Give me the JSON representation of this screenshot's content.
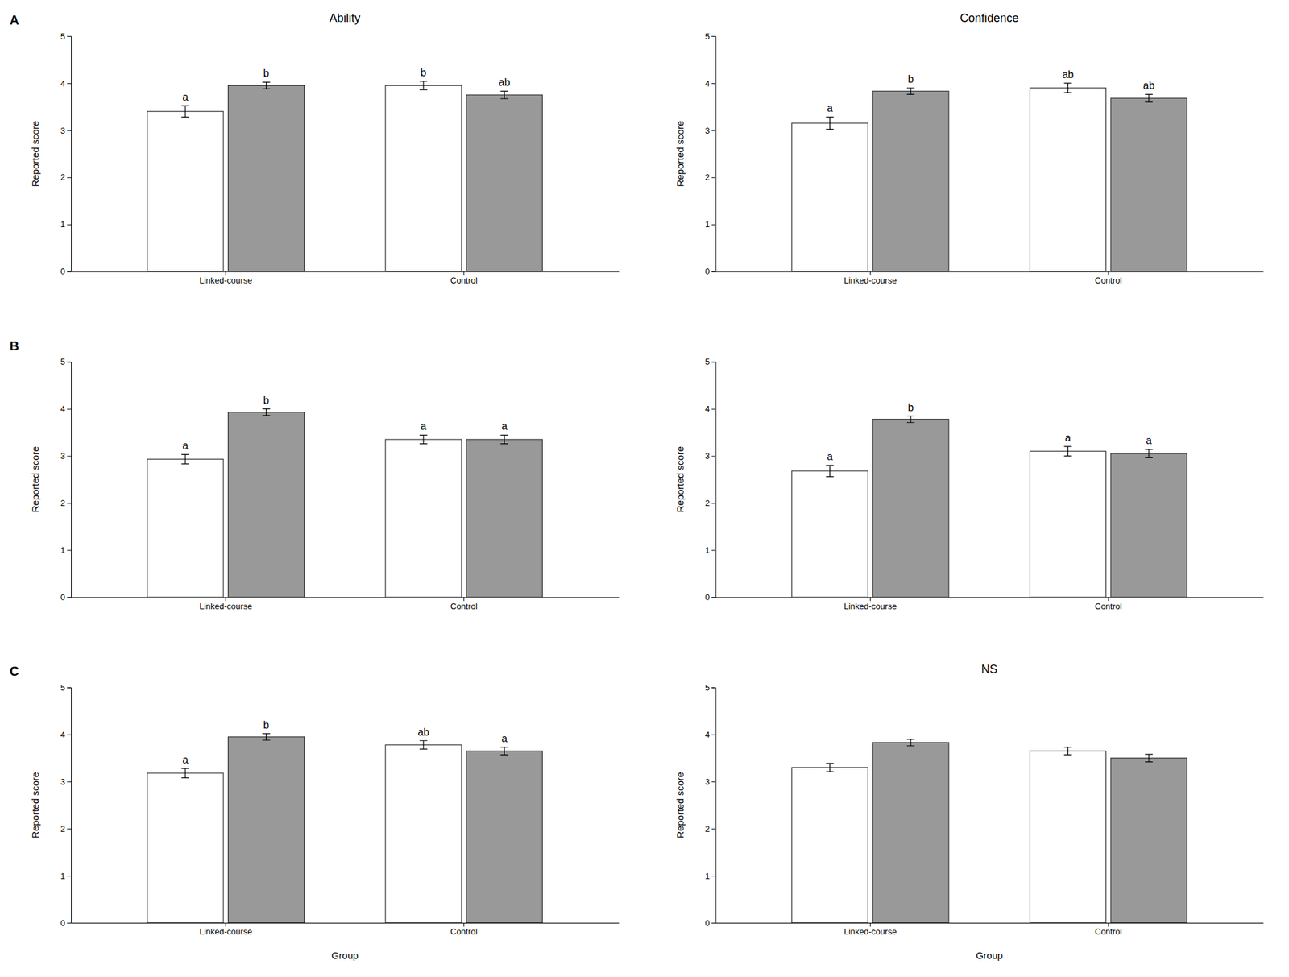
{
  "chart_data": [
    {
      "type": "bar",
      "title": "Ability",
      "annotations": [
        "A"
      ],
      "ylabel": "Reported score",
      "categories": [
        "Linked-course",
        "Control"
      ],
      "ylim": [
        0,
        5
      ],
      "yticks": [
        0,
        1,
        2,
        3,
        4,
        5
      ],
      "series": [
        {
          "color": "#ffffff",
          "values": [
            3.4,
            3.95
          ],
          "errors": [
            0.12,
            0.09
          ],
          "letter_labels": [
            "a",
            "b"
          ]
        },
        {
          "color": "#999999",
          "values": [
            3.95,
            3.75
          ],
          "errors": [
            0.07,
            0.08
          ],
          "letter_labels": [
            "b",
            "ab"
          ]
        }
      ]
    },
    {
      "type": "bar",
      "title": "Confidence",
      "ylabel": "Reported score",
      "categories": [
        "Linked-course",
        "Control"
      ],
      "ylim": [
        0,
        5
      ],
      "yticks": [
        0,
        1,
        2,
        3,
        4,
        5
      ],
      "series": [
        {
          "color": "#ffffff",
          "values": [
            3.15,
            3.9
          ],
          "errors": [
            0.13,
            0.1
          ],
          "letter_labels": [
            "a",
            "ab"
          ]
        },
        {
          "color": "#999999",
          "values": [
            3.83,
            3.68
          ],
          "errors": [
            0.07,
            0.08
          ],
          "letter_labels": [
            "b",
            "ab"
          ]
        }
      ]
    },
    {
      "type": "bar",
      "annotations": [
        "B"
      ],
      "ylabel": "Reported score",
      "categories": [
        "Linked-course",
        "Control"
      ],
      "ylim": [
        0,
        5
      ],
      "yticks": [
        0,
        1,
        2,
        3,
        4,
        5
      ],
      "series": [
        {
          "color": "#ffffff",
          "values": [
            2.93,
            3.35
          ],
          "errors": [
            0.1,
            0.09
          ],
          "letter_labels": [
            "a",
            "a"
          ]
        },
        {
          "color": "#999999",
          "values": [
            3.93,
            3.35
          ],
          "errors": [
            0.07,
            0.09
          ],
          "letter_labels": [
            "b",
            "a"
          ]
        }
      ]
    },
    {
      "type": "bar",
      "ylabel": "Reported score",
      "categories": [
        "Linked-course",
        "Control"
      ],
      "ylim": [
        0,
        5
      ],
      "yticks": [
        0,
        1,
        2,
        3,
        4,
        5
      ],
      "series": [
        {
          "color": "#ffffff",
          "values": [
            2.68,
            3.1
          ],
          "errors": [
            0.12,
            0.1
          ],
          "letter_labels": [
            "a",
            "a"
          ]
        },
        {
          "color": "#999999",
          "values": [
            3.78,
            3.05
          ],
          "errors": [
            0.07,
            0.09
          ],
          "letter_labels": [
            "b",
            "a"
          ]
        }
      ]
    },
    {
      "type": "bar",
      "annotations": [
        "C"
      ],
      "ylabel": "Reported score",
      "xlabel": "Group",
      "categories": [
        "Linked-course",
        "Control"
      ],
      "ylim": [
        0,
        5
      ],
      "yticks": [
        0,
        1,
        2,
        3,
        4,
        5
      ],
      "series": [
        {
          "color": "#ffffff",
          "values": [
            3.18,
            3.78
          ],
          "errors": [
            0.1,
            0.09
          ],
          "letter_labels": [
            "a",
            "ab"
          ]
        },
        {
          "color": "#999999",
          "values": [
            3.95,
            3.65
          ],
          "errors": [
            0.07,
            0.08
          ],
          "letter_labels": [
            "b",
            "a"
          ]
        }
      ]
    },
    {
      "type": "bar",
      "title": "NS",
      "ylabel": "Reported score",
      "xlabel": "Group",
      "categories": [
        "Linked-course",
        "Control"
      ],
      "ylim": [
        0,
        5
      ],
      "yticks": [
        0,
        1,
        2,
        3,
        4,
        5
      ],
      "series": [
        {
          "color": "#ffffff",
          "values": [
            3.3,
            3.65
          ],
          "errors": [
            0.09,
            0.08
          ]
        },
        {
          "color": "#999999",
          "values": [
            3.83,
            3.5
          ],
          "errors": [
            0.07,
            0.08
          ]
        }
      ]
    }
  ]
}
